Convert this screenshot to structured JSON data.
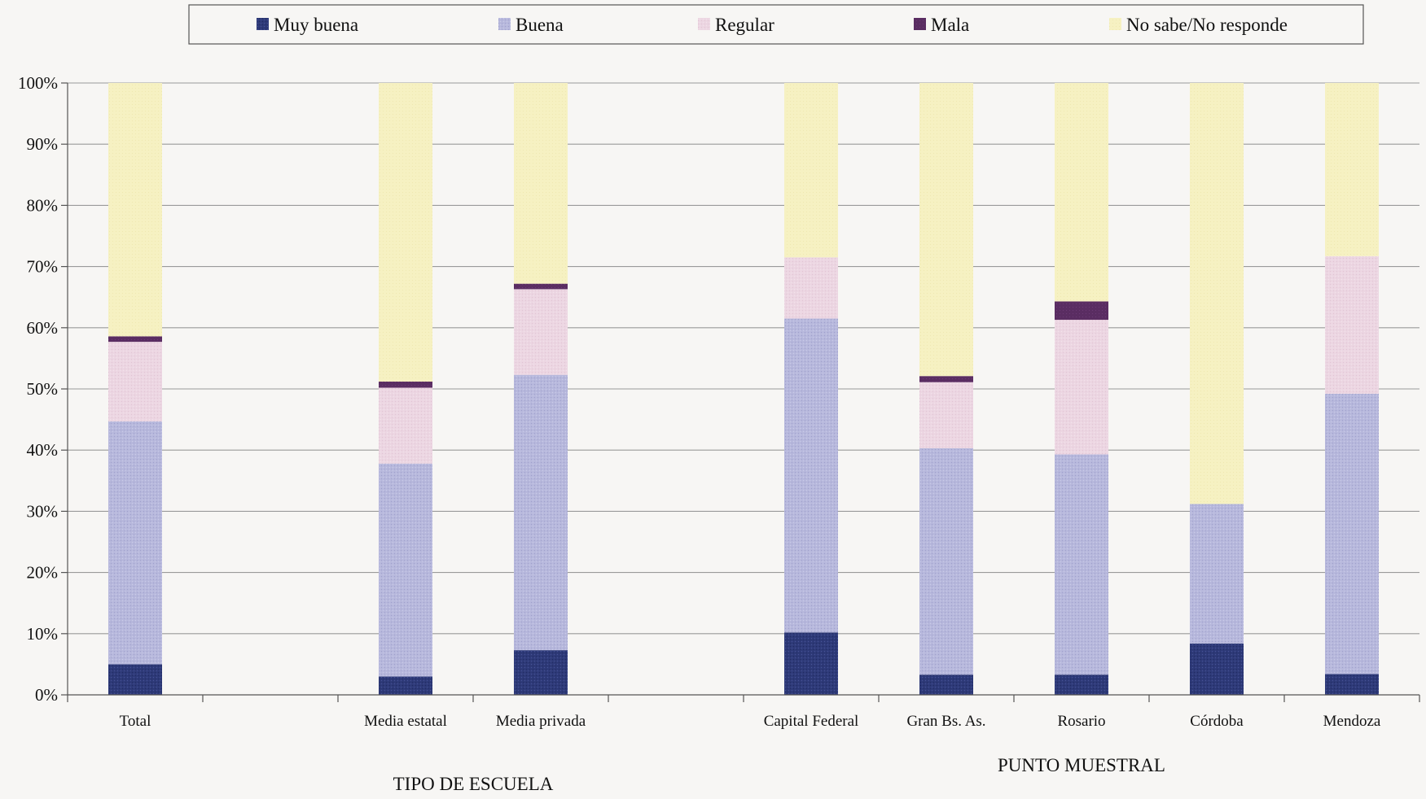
{
  "chart_data": {
    "type": "bar",
    "stacked": true,
    "ylim": [
      0,
      100
    ],
    "y_ticks": [
      "0%",
      "10%",
      "20%",
      "30%",
      "40%",
      "50%",
      "60%",
      "70%",
      "80%",
      "90%",
      "100%"
    ],
    "grid": true,
    "legend_position": "top",
    "slots": 10,
    "categories": [
      "Total",
      "Media estatal",
      "Media privada",
      "Capital Federal",
      "Gran Bs. As.",
      "Rosario",
      "Córdoba",
      "Mendoza"
    ],
    "category_slots": [
      0,
      2,
      3,
      5,
      6,
      7,
      8,
      9
    ],
    "groups": [
      {
        "label": "TIPO DE ESCUELA",
        "under": [
          1,
          2
        ]
      },
      {
        "label": "PUNTO MUESTRAL",
        "under": [
          3,
          4,
          5,
          6,
          7
        ]
      }
    ],
    "series": [
      {
        "name": "Muy buena",
        "color": "#2e3a78",
        "values": [
          5,
          3,
          7.3,
          10.2,
          3.3,
          3.3,
          8.4,
          3.4
        ]
      },
      {
        "name": "Buena",
        "color": "#b7b8dc",
        "values": [
          39.7,
          34.8,
          45,
          51.3,
          37,
          36,
          22.8,
          45.8
        ]
      },
      {
        "name": "Regular",
        "color": "#ecd6e2",
        "values": [
          13,
          12.4,
          14,
          10,
          10.8,
          22,
          0,
          22.5
        ]
      },
      {
        "name": "Mala",
        "color": "#5a2d62",
        "values": [
          0.9,
          1,
          0.9,
          0,
          1,
          3,
          0,
          0
        ]
      },
      {
        "name": "No sabe/No responde",
        "color": "#f6f1c2",
        "values": [
          41.4,
          48.8,
          32.8,
          28.5,
          47.9,
          35.7,
          68.8,
          28.3
        ]
      }
    ]
  }
}
